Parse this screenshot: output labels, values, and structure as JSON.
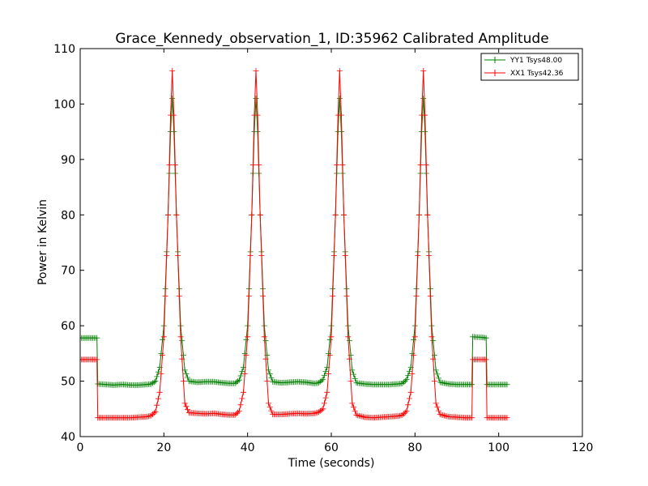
{
  "chart_data": {
    "type": "line",
    "title": "Grace_Kennedy_observation_1, ID:35962 Calibrated Amplitude",
    "xlabel": "Time (seconds)",
    "ylabel": "Power in Kelvin",
    "xlim": [
      0,
      120
    ],
    "ylim": [
      40,
      110
    ],
    "xticks": [
      0,
      20,
      40,
      60,
      80,
      100,
      120
    ],
    "yticks": [
      40,
      50,
      60,
      70,
      80,
      90,
      100,
      110
    ],
    "grid": false,
    "legend_position": "top-right",
    "series": [
      {
        "name": "YY1 Tsys48.00",
        "color": "#008000",
        "points": [
          [
            0,
            57.8
          ],
          [
            1,
            57.8
          ],
          [
            2,
            57.8
          ],
          [
            3,
            57.8
          ],
          [
            4,
            57.8
          ],
          [
            4.2,
            49.5
          ],
          [
            6,
            49.4
          ],
          [
            8,
            49.3
          ],
          [
            10,
            49.4
          ],
          [
            12,
            49.3
          ],
          [
            14,
            49.3
          ],
          [
            16,
            49.4
          ],
          [
            17,
            49.5
          ],
          [
            18,
            50.0
          ],
          [
            19,
            52.5
          ],
          [
            20,
            60.0
          ],
          [
            21,
            80.0
          ],
          [
            21.6,
            95.0
          ],
          [
            22,
            101.0
          ],
          [
            22.4,
            95.0
          ],
          [
            23,
            80.0
          ],
          [
            24,
            60.0
          ],
          [
            25,
            52.0
          ],
          [
            26,
            50.0
          ],
          [
            28,
            49.8
          ],
          [
            30,
            49.9
          ],
          [
            32,
            49.9
          ],
          [
            34,
            49.7
          ],
          [
            36,
            49.6
          ],
          [
            37,
            49.6
          ],
          [
            38,
            50.2
          ],
          [
            39,
            52.5
          ],
          [
            40,
            60.0
          ],
          [
            41,
            80.0
          ],
          [
            41.6,
            95.0
          ],
          [
            42,
            101.0
          ],
          [
            42.4,
            95.0
          ],
          [
            43,
            80.0
          ],
          [
            44,
            60.0
          ],
          [
            45,
            52.0
          ],
          [
            46,
            49.9
          ],
          [
            48,
            49.7
          ],
          [
            50,
            49.8
          ],
          [
            52,
            49.9
          ],
          [
            54,
            49.8
          ],
          [
            56,
            49.6
          ],
          [
            57,
            49.7
          ],
          [
            58,
            50.3
          ],
          [
            59,
            52.5
          ],
          [
            60,
            60.0
          ],
          [
            61,
            80.0
          ],
          [
            61.6,
            95.0
          ],
          [
            62,
            101.0
          ],
          [
            62.4,
            95.0
          ],
          [
            63,
            80.0
          ],
          [
            64,
            60.0
          ],
          [
            65,
            52.0
          ],
          [
            66,
            49.7
          ],
          [
            68,
            49.5
          ],
          [
            70,
            49.4
          ],
          [
            72,
            49.4
          ],
          [
            74,
            49.4
          ],
          [
            76,
            49.5
          ],
          [
            77,
            49.6
          ],
          [
            78,
            50.3
          ],
          [
            79,
            52.5
          ],
          [
            80,
            60.0
          ],
          [
            81,
            80.0
          ],
          [
            81.6,
            95.0
          ],
          [
            82,
            101.0
          ],
          [
            82.4,
            95.0
          ],
          [
            83,
            80.0
          ],
          [
            84,
            60.0
          ],
          [
            85,
            52.0
          ],
          [
            86,
            49.8
          ],
          [
            88,
            49.5
          ],
          [
            90,
            49.4
          ],
          [
            92,
            49.4
          ],
          [
            93.6,
            49.4
          ],
          [
            93.8,
            58.0
          ],
          [
            96,
            57.9
          ],
          [
            97,
            57.8
          ],
          [
            97.2,
            49.4
          ],
          [
            100,
            49.4
          ],
          [
            102,
            49.4
          ]
        ]
      },
      {
        "name": "XX1 Tsys42.36",
        "color": "#ff0000",
        "points": [
          [
            0,
            53.9
          ],
          [
            1,
            53.9
          ],
          [
            2,
            53.9
          ],
          [
            3,
            53.9
          ],
          [
            4,
            53.9
          ],
          [
            4.2,
            43.4
          ],
          [
            6,
            43.4
          ],
          [
            8,
            43.4
          ],
          [
            10,
            43.4
          ],
          [
            12,
            43.4
          ],
          [
            14,
            43.5
          ],
          [
            16,
            43.6
          ],
          [
            17,
            43.8
          ],
          [
            18,
            44.5
          ],
          [
            19,
            48.0
          ],
          [
            20,
            58.0
          ],
          [
            21,
            80.0
          ],
          [
            21.6,
            98.0
          ],
          [
            22,
            106.0
          ],
          [
            22.4,
            98.0
          ],
          [
            23,
            80.0
          ],
          [
            24,
            58.0
          ],
          [
            25,
            46.0
          ],
          [
            26,
            44.3
          ],
          [
            28,
            44.2
          ],
          [
            30,
            44.1
          ],
          [
            32,
            44.2
          ],
          [
            34,
            44.0
          ],
          [
            36,
            43.9
          ],
          [
            37,
            43.9
          ],
          [
            38,
            44.6
          ],
          [
            39,
            48.0
          ],
          [
            40,
            58.0
          ],
          [
            41,
            80.0
          ],
          [
            41.6,
            98.0
          ],
          [
            42,
            106.0
          ],
          [
            42.4,
            98.0
          ],
          [
            43,
            80.0
          ],
          [
            44,
            58.0
          ],
          [
            45,
            46.0
          ],
          [
            46,
            44.0
          ],
          [
            48,
            44.0
          ],
          [
            50,
            44.1
          ],
          [
            52,
            44.2
          ],
          [
            54,
            44.1
          ],
          [
            56,
            44.2
          ],
          [
            57,
            44.4
          ],
          [
            58,
            45.0
          ],
          [
            59,
            48.0
          ],
          [
            60,
            58.0
          ],
          [
            61,
            80.0
          ],
          [
            61.6,
            98.0
          ],
          [
            62,
            106.0
          ],
          [
            62.4,
            98.0
          ],
          [
            63,
            80.0
          ],
          [
            64,
            58.0
          ],
          [
            65,
            46.0
          ],
          [
            66,
            43.9
          ],
          [
            68,
            43.5
          ],
          [
            70,
            43.4
          ],
          [
            72,
            43.5
          ],
          [
            74,
            43.6
          ],
          [
            76,
            43.7
          ],
          [
            77,
            43.9
          ],
          [
            78,
            44.6
          ],
          [
            79,
            48.0
          ],
          [
            80,
            58.0
          ],
          [
            81,
            80.0
          ],
          [
            81.6,
            98.0
          ],
          [
            82,
            106.0
          ],
          [
            82.4,
            98.0
          ],
          [
            83,
            80.0
          ],
          [
            84,
            58.0
          ],
          [
            85,
            46.0
          ],
          [
            86,
            44.0
          ],
          [
            88,
            43.6
          ],
          [
            90,
            43.5
          ],
          [
            92,
            43.4
          ],
          [
            93.6,
            43.4
          ],
          [
            93.8,
            53.9
          ],
          [
            96,
            53.9
          ],
          [
            97,
            53.9
          ],
          [
            97.2,
            43.4
          ],
          [
            100,
            43.4
          ],
          [
            102,
            43.4
          ]
        ]
      }
    ]
  }
}
